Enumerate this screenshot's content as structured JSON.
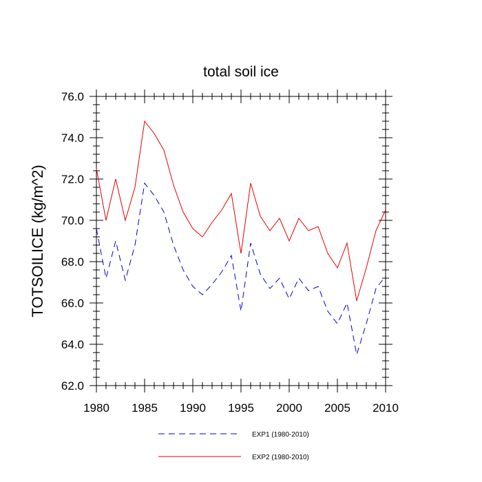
{
  "chart_data": {
    "type": "line",
    "title": "total soil ice",
    "xlabel": "",
    "ylabel": "TOTSOILICE  (kg/m^2)",
    "xlim": [
      1980,
      2010
    ],
    "ylim": [
      62.0,
      76.0
    ],
    "xticks": [
      1980,
      1985,
      1990,
      1995,
      2000,
      2005,
      2010
    ],
    "yticks": [
      "62.0",
      "64.0",
      "66.0",
      "68.0",
      "70.0",
      "72.0",
      "74.0",
      "76.0"
    ],
    "grid": false,
    "legend_position": "bottom",
    "x": [
      1980,
      1981,
      1982,
      1983,
      1984,
      1985,
      1986,
      1987,
      1988,
      1989,
      1990,
      1991,
      1992,
      1993,
      1994,
      1995,
      1996,
      1997,
      1998,
      1999,
      2000,
      2001,
      2002,
      2003,
      2004,
      2005,
      2006,
      2007,
      2008,
      2009,
      2010
    ],
    "series": [
      {
        "name": "EXP1 (1980-2010)",
        "color": "#0000cc",
        "style": "dashed",
        "values": [
          69.6,
          67.2,
          69.0,
          67.1,
          68.8,
          71.8,
          71.2,
          70.4,
          68.8,
          67.6,
          66.8,
          66.4,
          66.9,
          67.5,
          68.3,
          65.6,
          68.9,
          67.4,
          66.7,
          67.2,
          66.2,
          67.2,
          66.6,
          66.8,
          65.6,
          65.0,
          66.0,
          63.5,
          65.0,
          66.7,
          67.3
        ]
      },
      {
        "name": "EXP2 (1980-2010)",
        "color": "#e60000",
        "style": "solid",
        "values": [
          72.5,
          70.0,
          72.0,
          70.0,
          71.6,
          74.8,
          74.2,
          73.4,
          71.7,
          70.4,
          69.6,
          69.2,
          69.9,
          70.5,
          71.3,
          68.4,
          71.8,
          70.2,
          69.5,
          70.1,
          69.0,
          70.1,
          69.5,
          69.7,
          68.4,
          67.7,
          68.9,
          66.1,
          67.7,
          69.5,
          70.5
        ]
      }
    ]
  }
}
